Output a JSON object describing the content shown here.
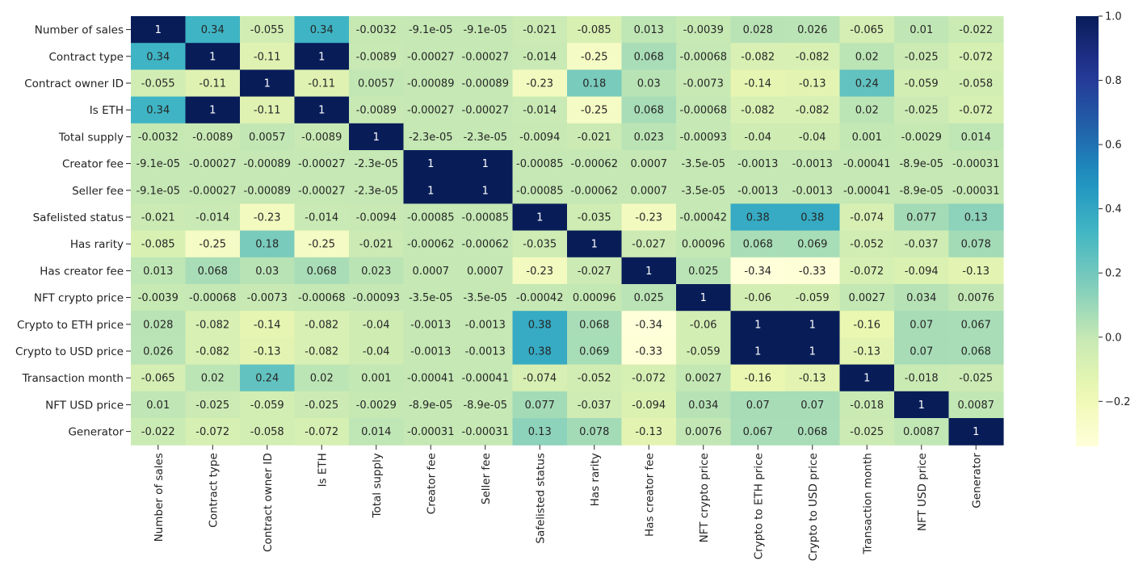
{
  "chart_data": {
    "type": "heatmap",
    "title": "",
    "xlabel": "",
    "ylabel": "",
    "labels": [
      "Number of sales",
      "Contract type",
      "Contract owner ID",
      "Is ETH",
      "Total supply",
      "Creator fee",
      "Seller fee",
      "Safelisted status",
      "Has rarity",
      "Has creator fee",
      "NFT crypto price",
      "Crypto to ETH price",
      "Crypto to USD price",
      "Transaction month",
      "NFT USD price",
      "Generator"
    ],
    "values": [
      [
        "1",
        "0.34",
        "-0.055",
        "0.34",
        "-0.0032",
        "-9.1e-05",
        "-9.1e-05",
        "-0.021",
        "-0.085",
        "0.013",
        "-0.0039",
        "0.028",
        "0.026",
        "-0.065",
        "0.01",
        "-0.022"
      ],
      [
        "0.34",
        "1",
        "-0.11",
        "1",
        "-0.0089",
        "-0.00027",
        "-0.00027",
        "-0.014",
        "-0.25",
        "0.068",
        "-0.00068",
        "-0.082",
        "-0.082",
        "0.02",
        "-0.025",
        "-0.072"
      ],
      [
        "-0.055",
        "-0.11",
        "1",
        "-0.11",
        "0.0057",
        "-0.00089",
        "-0.00089",
        "-0.23",
        "0.18",
        "0.03",
        "-0.0073",
        "-0.14",
        "-0.13",
        "0.24",
        "-0.059",
        "-0.058"
      ],
      [
        "0.34",
        "1",
        "-0.11",
        "1",
        "-0.0089",
        "-0.00027",
        "-0.00027",
        "-0.014",
        "-0.25",
        "0.068",
        "-0.00068",
        "-0.082",
        "-0.082",
        "0.02",
        "-0.025",
        "-0.072"
      ],
      [
        "-0.0032",
        "-0.0089",
        "0.0057",
        "-0.0089",
        "1",
        "-2.3e-05",
        "-2.3e-05",
        "-0.0094",
        "-0.021",
        "0.023",
        "-0.00093",
        "-0.04",
        "-0.04",
        "0.001",
        "-0.0029",
        "0.014"
      ],
      [
        "-9.1e-05",
        "-0.00027",
        "-0.00089",
        "-0.00027",
        "-2.3e-05",
        "1",
        "1",
        "-0.00085",
        "-0.00062",
        "0.0007",
        "-3.5e-05",
        "-0.0013",
        "-0.0013",
        "-0.00041",
        "-8.9e-05",
        "-0.00031"
      ],
      [
        "-9.1e-05",
        "-0.00027",
        "-0.00089",
        "-0.00027",
        "-2.3e-05",
        "1",
        "1",
        "-0.00085",
        "-0.00062",
        "0.0007",
        "-3.5e-05",
        "-0.0013",
        "-0.0013",
        "-0.00041",
        "-8.9e-05",
        "-0.00031"
      ],
      [
        "-0.021",
        "-0.014",
        "-0.23",
        "-0.014",
        "-0.0094",
        "-0.00085",
        "-0.00085",
        "1",
        "-0.035",
        "-0.23",
        "-0.00042",
        "0.38",
        "0.38",
        "-0.074",
        "0.077",
        "0.13"
      ],
      [
        "-0.085",
        "-0.25",
        "0.18",
        "-0.25",
        "-0.021",
        "-0.00062",
        "-0.00062",
        "-0.035",
        "1",
        "-0.027",
        "0.00096",
        "0.068",
        "0.069",
        "-0.052",
        "-0.037",
        "0.078"
      ],
      [
        "0.013",
        "0.068",
        "0.03",
        "0.068",
        "0.023",
        "0.0007",
        "0.0007",
        "-0.23",
        "-0.027",
        "1",
        "0.025",
        "-0.34",
        "-0.33",
        "-0.072",
        "-0.094",
        "-0.13"
      ],
      [
        "-0.0039",
        "-0.00068",
        "-0.0073",
        "-0.00068",
        "-0.00093",
        "-3.5e-05",
        "-3.5e-05",
        "-0.00042",
        "0.00096",
        "0.025",
        "1",
        "-0.06",
        "-0.059",
        "0.0027",
        "0.034",
        "0.0076"
      ],
      [
        "0.028",
        "-0.082",
        "-0.14",
        "-0.082",
        "-0.04",
        "-0.0013",
        "-0.0013",
        "0.38",
        "0.068",
        "-0.34",
        "-0.06",
        "1",
        "1",
        "-0.16",
        "0.07",
        "0.067"
      ],
      [
        "0.026",
        "-0.082",
        "-0.13",
        "-0.082",
        "-0.04",
        "-0.0013",
        "-0.0013",
        "0.38",
        "0.069",
        "-0.33",
        "-0.059",
        "1",
        "1",
        "-0.13",
        "0.07",
        "0.068"
      ],
      [
        "-0.065",
        "0.02",
        "0.24",
        "0.02",
        "0.001",
        "-0.00041",
        "-0.00041",
        "-0.074",
        "-0.052",
        "-0.072",
        "0.0027",
        "-0.16",
        "-0.13",
        "1",
        "-0.018",
        "-0.025"
      ],
      [
        "0.01",
        "-0.025",
        "-0.059",
        "-0.025",
        "-0.0029",
        "-8.9e-05",
        "-8.9e-05",
        "0.077",
        "-0.037",
        "-0.094",
        "0.034",
        "0.07",
        "0.07",
        "-0.018",
        "1",
        "0.0087"
      ],
      [
        "-0.022",
        "-0.072",
        "-0.058",
        "-0.072",
        "0.014",
        "-0.00031",
        "-0.00031",
        "0.13",
        "0.078",
        "-0.13",
        "0.0076",
        "0.067",
        "0.068",
        "-0.025",
        "0.0087",
        "1"
      ]
    ],
    "colormap": "YlGnBu",
    "vmin": -0.34,
    "vmax": 1.0,
    "colorbar_ticks": [
      "1.0",
      "0.8",
      "0.6",
      "0.4",
      "0.2",
      "0.0",
      "−0.2"
    ],
    "colorbar_tick_values": [
      1.0,
      0.8,
      0.6,
      0.4,
      0.2,
      0.0,
      -0.2
    ],
    "grid": false,
    "legend": "colorbar right"
  }
}
